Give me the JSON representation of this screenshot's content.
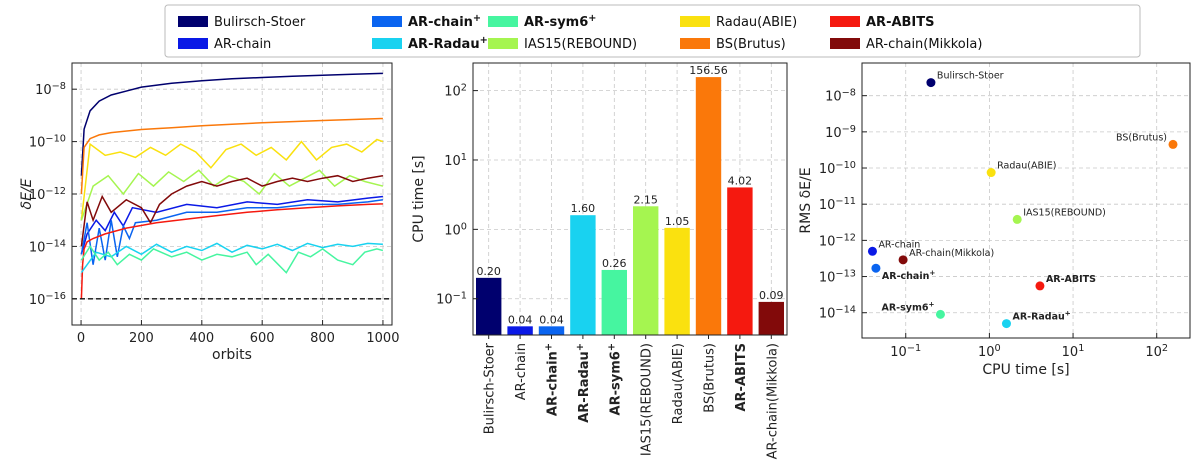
{
  "colors": {
    "Bulirsch-Stoer": "#00006e",
    "AR-chain": "#0a19e6",
    "AR-chain+": "#0a64f0",
    "AR-Radau+": "#19d2f0",
    "AR-sym6+": "#46f5a0",
    "IAS15(REBOUND)": "#a5f550",
    "Radau(ABIE)": "#fae10f",
    "BS(Brutus)": "#fa780a",
    "AR-ABITS": "#f5190f",
    "AR-chain(Mikkola)": "#820a0a"
  },
  "legend": {
    "placement": "top",
    "entries": [
      {
        "key": "Bulirsch-Stoer",
        "label": "Bulirsch-Stoer",
        "sup": "",
        "bold": false
      },
      {
        "key": "AR-chain",
        "label": "AR-chain",
        "sup": "",
        "bold": false
      },
      {
        "key": "AR-chain+",
        "label": "AR-chain",
        "sup": "+",
        "bold": true
      },
      {
        "key": "AR-Radau+",
        "label": "AR-Radau",
        "sup": "+",
        "bold": true
      },
      {
        "key": "AR-sym6+",
        "label": "AR-sym6",
        "sup": "+",
        "bold": true
      },
      {
        "key": "IAS15(REBOUND)",
        "label": "IAS15(REBOUND)",
        "sup": "",
        "bold": false
      },
      {
        "key": "Radau(ABIE)",
        "label": "Radau(ABIE)",
        "sup": "",
        "bold": false
      },
      {
        "key": "BS(Brutus)",
        "label": "BS(Brutus)",
        "sup": "",
        "bold": false
      },
      {
        "key": "AR-ABITS",
        "label": "AR-ABITS",
        "sup": "",
        "bold": true
      },
      {
        "key": "AR-chain(Mikkola)",
        "label": "AR-chain(Mikkola)",
        "sup": "",
        "bold": false
      }
    ]
  },
  "chart_data": [
    {
      "type": "line",
      "xlabel": "orbits",
      "ylabel": "δE/E",
      "xlim": [
        -30,
        1030
      ],
      "ylim": [
        1e-17,
        1e-07
      ],
      "yscale": "log",
      "grid": true,
      "xticks": [
        0,
        200,
        400,
        600,
        800,
        1000
      ],
      "yticks": [
        {
          "v": 1e-16,
          "label": "10",
          "exp": "−16"
        },
        {
          "v": 1e-14,
          "label": "10",
          "exp": "−14"
        },
        {
          "v": 1e-12,
          "label": "10",
          "exp": "−12"
        },
        {
          "v": 1e-10,
          "label": "10",
          "exp": "−10"
        },
        {
          "v": 1e-08,
          "label": "10",
          "exp": "−8"
        }
      ],
      "reference_line": {
        "y": 1e-16,
        "style": "dashed"
      },
      "series": [
        {
          "key": "Bulirsch-Stoer",
          "x": [
            1,
            10,
            30,
            60,
            100,
            200,
            300,
            400,
            500,
            600,
            700,
            800,
            900,
            1000
          ],
          "y": [
            5e-12,
            3e-10,
            1.5e-09,
            3.5e-09,
            6e-09,
            1.2e-08,
            1.7e-08,
            2.1e-08,
            2.5e-08,
            2.8e-08,
            3.1e-08,
            3.4e-08,
            3.7e-08,
            4e-08
          ]
        },
        {
          "key": "BS(Brutus)",
          "x": [
            1,
            10,
            30,
            60,
            100,
            200,
            300,
            400,
            500,
            600,
            700,
            800,
            900,
            1000
          ],
          "y": [
            1e-12,
            6e-11,
            1.3e-10,
            1.8e-10,
            2.2e-10,
            2.9e-10,
            3.4e-10,
            4e-10,
            4.6e-10,
            5.2e-10,
            5.8e-10,
            6.4e-10,
            7e-10,
            7.6e-10
          ]
        },
        {
          "key": "Radau(ABIE)",
          "x": [
            1,
            30,
            80,
            130,
            180,
            230,
            280,
            330,
            380,
            430,
            480,
            530,
            580,
            630,
            680,
            730,
            780,
            830,
            880,
            930,
            980,
            1000
          ],
          "y": [
            1e-13,
            8e-11,
            3e-11,
            4e-11,
            2.5e-11,
            6e-11,
            3e-11,
            8e-11,
            4e-11,
            1e-11,
            5e-11,
            8e-11,
            3e-11,
            6e-11,
            2e-11,
            1e-10,
            2e-11,
            6e-11,
            8e-11,
            4e-11,
            1.2e-10,
            1e-10
          ]
        },
        {
          "key": "IAS15(REBOUND)",
          "x": [
            1,
            40,
            90,
            140,
            190,
            240,
            290,
            340,
            390,
            440,
            490,
            540,
            590,
            640,
            690,
            740,
            790,
            840,
            890,
            940,
            1000
          ],
          "y": [
            1e-13,
            2e-12,
            5e-12,
            1e-12,
            6e-12,
            2e-12,
            7e-12,
            3e-12,
            8e-12,
            2e-12,
            5e-12,
            3e-12,
            1e-12,
            6e-12,
            2e-12,
            4e-12,
            8e-12,
            2e-12,
            5e-12,
            3e-12,
            2e-12
          ]
        },
        {
          "key": "AR-chain",
          "x": [
            1,
            20,
            50,
            80,
            110,
            140,
            170,
            250,
            350,
            450,
            550,
            650,
            750,
            850,
            950,
            1000
          ],
          "y": [
            5e-15,
            3e-14,
            1e-13,
            4e-14,
            2e-13,
            6e-14,
            3e-13,
            2e-13,
            4e-13,
            3e-13,
            5e-13,
            4e-13,
            6e-13,
            5e-13,
            7e-13,
            8e-13
          ]
        },
        {
          "key": "AR-chain+",
          "x": [
            1,
            20,
            40,
            60,
            80,
            100,
            120,
            140,
            160,
            180,
            250,
            350,
            450,
            550,
            650,
            750,
            850,
            950,
            1000
          ],
          "y": [
            5e-15,
            8e-14,
            2e-15,
            5e-14,
            3e-15,
            1e-13,
            4e-15,
            6e-14,
            2e-14,
            8e-14,
            1e-13,
            2e-13,
            2e-13,
            3e-13,
            3e-13,
            4e-13,
            4e-13,
            5e-13,
            6e-13
          ]
        },
        {
          "key": "AR-chain(Mikkola)",
          "x": [
            1,
            20,
            40,
            70,
            100,
            150,
            200,
            230,
            260,
            300,
            350,
            400,
            450,
            500,
            550,
            600,
            650,
            700,
            750,
            800,
            850,
            900,
            950,
            1000
          ],
          "y": [
            1e-14,
            5e-13,
            1e-13,
            8e-13,
            2e-13,
            6e-13,
            3e-13,
            8e-14,
            4e-13,
            1e-12,
            2e-12,
            3e-12,
            2e-12,
            3e-12,
            4e-12,
            2e-12,
            3e-12,
            4e-12,
            3e-12,
            4e-12,
            5e-12,
            3e-12,
            4e-12,
            5e-12
          ]
        },
        {
          "key": "AR-ABITS",
          "x": [
            1,
            5,
            10,
            20,
            40,
            80,
            150,
            250,
            350,
            450,
            550,
            650,
            750,
            850,
            950,
            1000
          ],
          "y": [
            1e-16,
            2e-15,
            8e-15,
            1.5e-14,
            2e-14,
            3e-14,
            5e-14,
            8e-14,
            1.1e-13,
            1.5e-13,
            2e-13,
            2.5e-13,
            3e-13,
            3.5e-13,
            4e-13,
            4.2e-13
          ]
        },
        {
          "key": "AR-Radau+",
          "x": [
            1,
            50,
            100,
            150,
            200,
            250,
            300,
            350,
            400,
            450,
            500,
            550,
            600,
            650,
            700,
            750,
            800,
            850,
            900,
            950,
            1000
          ],
          "y": [
            1e-15,
            6e-15,
            4e-15,
            1e-14,
            5e-15,
            1.2e-14,
            6e-15,
            1e-14,
            7e-15,
            1.3e-14,
            6e-15,
            1.1e-14,
            8e-15,
            1.2e-14,
            7e-15,
            1.3e-14,
            9e-15,
            1.2e-14,
            1e-14,
            1.3e-14,
            1.2e-14
          ]
        },
        {
          "key": "AR-sym6+",
          "x": [
            1,
            30,
            60,
            90,
            120,
            160,
            200,
            240,
            300,
            350,
            400,
            450,
            500,
            550,
            580,
            620,
            680,
            720,
            760,
            800,
            850,
            900,
            940,
            980,
            1000
          ],
          "y": [
            3e-15,
            1e-14,
            3e-15,
            6e-15,
            2e-15,
            5e-15,
            3e-15,
            8e-15,
            4e-15,
            6e-15,
            3e-15,
            5e-15,
            4e-15,
            6e-15,
            2e-15,
            5e-15,
            1e-15,
            6e-15,
            4e-15,
            8e-15,
            3e-15,
            2e-15,
            6e-15,
            8e-15,
            7e-15
          ]
        }
      ]
    },
    {
      "type": "bar",
      "ylabel": "CPU time [s]",
      "yscale": "log",
      "ylim": [
        0.03,
        250
      ],
      "grid": true,
      "yticks": [
        {
          "v": 0.1,
          "label": "10",
          "exp": "−1"
        },
        {
          "v": 1,
          "label": "10",
          "exp": "0"
        },
        {
          "v": 10,
          "label": "10",
          "exp": "1"
        },
        {
          "v": 100,
          "label": "10",
          "exp": "2"
        }
      ],
      "categories": [
        {
          "key": "Bulirsch-Stoer",
          "label": "Bulirsch-Stoer",
          "sup": "",
          "bold": false
        },
        {
          "key": "AR-chain",
          "label": "AR-chain",
          "sup": "",
          "bold": false
        },
        {
          "key": "AR-chain+",
          "label": "AR-chain",
          "sup": "+",
          "bold": true
        },
        {
          "key": "AR-Radau+",
          "label": "AR-Radau",
          "sup": "+",
          "bold": true
        },
        {
          "key": "AR-sym6+",
          "label": "AR-sym6",
          "sup": "+",
          "bold": true
        },
        {
          "key": "IAS15(REBOUND)",
          "label": "IAS15(REBOUND)",
          "sup": "",
          "bold": false
        },
        {
          "key": "Radau(ABIE)",
          "label": "Radau(ABIE)",
          "sup": "",
          "bold": false
        },
        {
          "key": "BS(Brutus)",
          "label": "BS(Brutus)",
          "sup": "",
          "bold": false
        },
        {
          "key": "AR-ABITS",
          "label": "AR-ABITS",
          "sup": "",
          "bold": true
        },
        {
          "key": "AR-chain(Mikkola)",
          "label": "AR-chain(Mikkola)",
          "sup": "",
          "bold": false
        }
      ],
      "values": [
        0.2,
        0.04,
        0.04,
        1.6,
        0.26,
        2.15,
        1.05,
        156.56,
        4.02,
        0.09
      ],
      "value_labels": [
        "0.20",
        "0.04",
        "0.04",
        "1.60",
        "0.26",
        "2.15",
        "1.05",
        "156.56",
        "4.02",
        "0.09"
      ]
    },
    {
      "type": "scatter",
      "xlabel": "CPU time [s]",
      "ylabel": "RMS δE/E",
      "xscale": "log",
      "yscale": "log",
      "xlim": [
        0.03,
        250
      ],
      "ylim": [
        2e-15,
        8e-08
      ],
      "grid": true,
      "xticks": [
        {
          "v": 0.1,
          "label": "10",
          "exp": "−1"
        },
        {
          "v": 1,
          "label": "10",
          "exp": "0"
        },
        {
          "v": 10,
          "label": "10",
          "exp": "1"
        },
        {
          "v": 100,
          "label": "10",
          "exp": "2"
        }
      ],
      "yticks": [
        {
          "v": 1e-14,
          "label": "10",
          "exp": "−14"
        },
        {
          "v": 1e-13,
          "label": "10",
          "exp": "−13"
        },
        {
          "v": 1e-12,
          "label": "10",
          "exp": "−12"
        },
        {
          "v": 1e-11,
          "label": "10",
          "exp": "−11"
        },
        {
          "v": 1e-10,
          "label": "10",
          "exp": "−10"
        },
        {
          "v": 1e-09,
          "label": "10",
          "exp": "−9"
        },
        {
          "v": 1e-08,
          "label": "10",
          "exp": "−8"
        }
      ],
      "points": [
        {
          "key": "Bulirsch-Stoer",
          "label": "Bulirsch-Stoer",
          "sup": "",
          "bold": false,
          "x": 0.2,
          "y": 2.3e-08,
          "anchor": "right-up"
        },
        {
          "key": "AR-chain",
          "label": "AR-chain",
          "sup": "",
          "bold": false,
          "x": 0.04,
          "y": 5e-13,
          "anchor": "right-up"
        },
        {
          "key": "AR-chain+",
          "label": "AR-chain",
          "sup": "+",
          "bold": true,
          "x": 0.044,
          "y": 1.7e-13,
          "anchor": "right-down"
        },
        {
          "key": "AR-chain(Mikkola)",
          "label": "AR-chain(Mikkola)",
          "sup": "",
          "bold": false,
          "x": 0.093,
          "y": 2.9e-13,
          "anchor": "right-up"
        },
        {
          "key": "Radau(ABIE)",
          "label": "Radau(ABIE)",
          "sup": "",
          "bold": false,
          "x": 1.05,
          "y": 7.5e-11,
          "anchor": "right-up"
        },
        {
          "key": "IAS15(REBOUND)",
          "label": "IAS15(REBOUND)",
          "sup": "",
          "bold": false,
          "x": 2.15,
          "y": 3.8e-12,
          "anchor": "right-up"
        },
        {
          "key": "BS(Brutus)",
          "label": "BS(Brutus)",
          "sup": "",
          "bold": false,
          "x": 156.56,
          "y": 4.5e-10,
          "anchor": "left-up"
        },
        {
          "key": "AR-ABITS",
          "label": "AR-ABITS",
          "sup": "",
          "bold": true,
          "x": 4.02,
          "y": 5.5e-14,
          "anchor": "right-up"
        },
        {
          "key": "AR-sym6+",
          "label": "AR-sym6",
          "sup": "+",
          "bold": true,
          "x": 0.26,
          "y": 9e-15,
          "anchor": "left-up"
        },
        {
          "key": "AR-Radau+",
          "label": "AR-Radau",
          "sup": "+",
          "bold": true,
          "x": 1.6,
          "y": 5e-15,
          "anchor": "right-up"
        }
      ]
    }
  ]
}
